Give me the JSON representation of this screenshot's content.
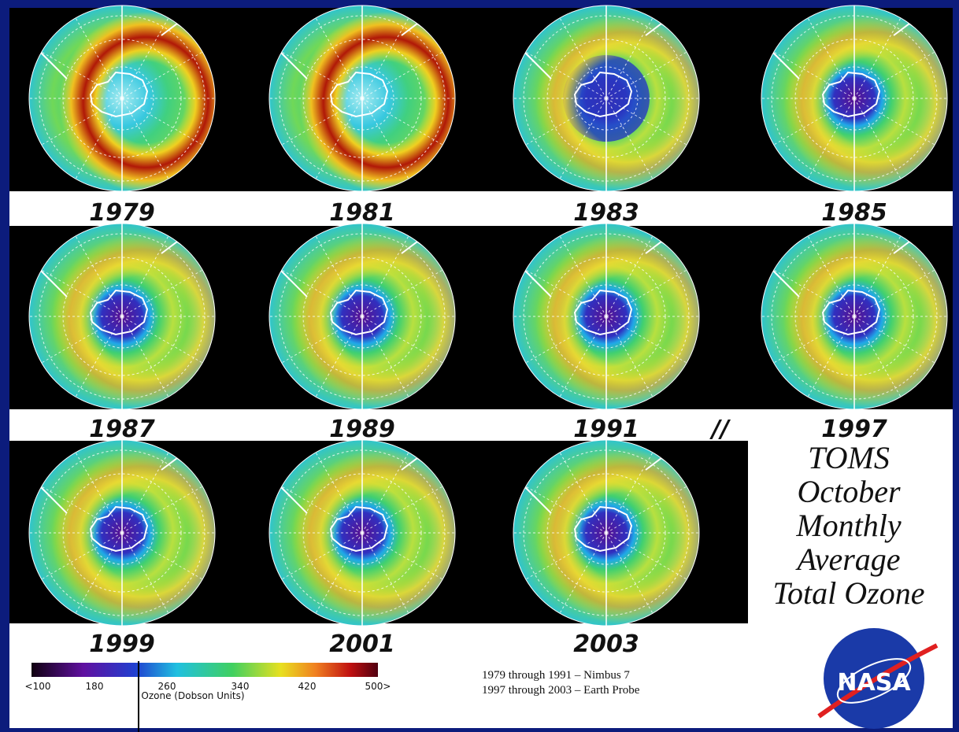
{
  "panels": [
    {
      "year": "1979"
    },
    {
      "year": "1981"
    },
    {
      "year": "1983"
    },
    {
      "year": "1985"
    },
    {
      "year": "1987"
    },
    {
      "year": "1989"
    },
    {
      "year": "1991"
    },
    {
      "year": "1997"
    },
    {
      "year": "1999"
    },
    {
      "year": "2001"
    },
    {
      "year": "2003"
    }
  ],
  "separator": "//",
  "title_lines": [
    "TOMS",
    "October",
    "Monthly",
    "Average",
    "Total Ozone"
  ],
  "colorbar": {
    "ticks": [
      "<100",
      "180",
      "260",
      "340",
      "420",
      "500>"
    ],
    "label": "Ozone (Dobson Units)"
  },
  "notes": [
    "1979 through 1991 – Nimbus 7",
    "1997 through 2003 – Earth Probe"
  ],
  "logo": "NASA"
}
